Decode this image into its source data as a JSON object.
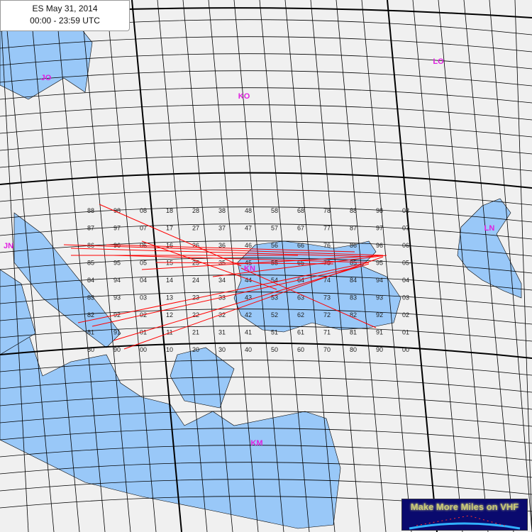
{
  "header": {
    "title": "ES May 31, 2014",
    "time_range": "00:00 - 23:59 UTC"
  },
  "logo": {
    "text": "Make More Miles on VHF"
  },
  "colors": {
    "land": "#f0f0f0",
    "sea": "#99c8f8",
    "grid": "#000000",
    "paths": "#ff0000",
    "field_labels": "#e020e0"
  },
  "fields": [
    {
      "label": "JO"
    },
    {
      "label": "KO"
    },
    {
      "label": "LO"
    },
    {
      "label": "JN"
    },
    {
      "label": "KN"
    },
    {
      "label": "LN"
    },
    {
      "label": "KM"
    }
  ],
  "square_rows": [
    [
      "88",
      "98",
      "08",
      "18",
      "28",
      "38",
      "48",
      "58",
      "68",
      "78",
      "88",
      "98",
      "08"
    ],
    [
      "87",
      "97",
      "07",
      "17",
      "27",
      "37",
      "47",
      "57",
      "67",
      "77",
      "87",
      "97",
      "07"
    ],
    [
      "86",
      "96",
      "06",
      "16",
      "26",
      "36",
      "46",
      "56",
      "66",
      "76",
      "86",
      "96",
      "06"
    ],
    [
      "85",
      "95",
      "05",
      "15",
      "25",
      "35",
      "45",
      "55",
      "65",
      "75",
      "85",
      "95",
      "05"
    ],
    [
      "84",
      "94",
      "04",
      "14",
      "24",
      "34",
      "44",
      "54",
      "64",
      "74",
      "84",
      "94",
      "04"
    ],
    [
      "83",
      "93",
      "03",
      "13",
      "23",
      "33",
      "43",
      "53",
      "63",
      "73",
      "83",
      "93",
      "03"
    ],
    [
      "82",
      "92",
      "02",
      "12",
      "22",
      "32",
      "42",
      "52",
      "62",
      "72",
      "82",
      "92",
      "02"
    ],
    [
      "81",
      "91",
      "01",
      "11",
      "21",
      "31",
      "41",
      "51",
      "61",
      "71",
      "81",
      "91",
      "01"
    ],
    [
      "80",
      "90",
      "00",
      "10",
      "20",
      "30",
      "40",
      "50",
      "60",
      "70",
      "80",
      "90",
      "00"
    ]
  ]
}
